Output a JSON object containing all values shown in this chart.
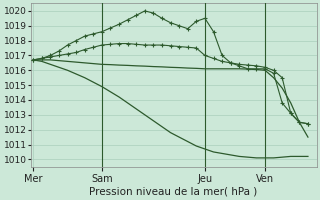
{
  "bg_color": "#cce8d8",
  "grid_color": "#aacfbc",
  "line_color": "#2d5a2d",
  "title": "Pression niveau de la mer( hPa )",
  "ylim": [
    1009.5,
    1020.5
  ],
  "yticks": [
    1010,
    1011,
    1012,
    1013,
    1014,
    1015,
    1016,
    1017,
    1018,
    1019,
    1020
  ],
  "day_labels": [
    "Mer",
    "Sam",
    "Jeu",
    "Ven"
  ],
  "day_positions": [
    0,
    8,
    20,
    27
  ],
  "vline_positions": [
    8,
    20,
    27
  ],
  "xlim": [
    -0.3,
    33
  ],
  "series_flat_x": [
    0,
    1,
    2,
    3,
    4,
    5,
    6,
    7,
    8,
    9,
    10,
    11,
    12,
    13,
    14,
    15,
    16,
    17,
    18,
    19,
    20,
    21,
    22,
    23,
    24,
    25,
    26,
    27,
    28,
    29,
    30,
    31,
    32
  ],
  "series_flat_y": [
    1016.7,
    1016.7,
    1016.7,
    1016.65,
    1016.6,
    1016.55,
    1016.5,
    1016.45,
    1016.4,
    1016.38,
    1016.35,
    1016.33,
    1016.3,
    1016.28,
    1016.25,
    1016.23,
    1016.2,
    1016.18,
    1016.15,
    1016.13,
    1016.1,
    1016.1,
    1016.1,
    1016.1,
    1016.1,
    1016.08,
    1016.05,
    1016.0,
    1015.5,
    1014.8,
    1013.8,
    1012.5,
    1011.5
  ],
  "series_mid_x": [
    0,
    1,
    2,
    3,
    4,
    5,
    6,
    7,
    8,
    9,
    10,
    11,
    12,
    13,
    14,
    15,
    16,
    17,
    18,
    19,
    20,
    21,
    22,
    23,
    24,
    25,
    26,
    27,
    28,
    29,
    30,
    31,
    32
  ],
  "series_mid_y": [
    1016.7,
    1016.8,
    1016.9,
    1017.0,
    1017.1,
    1017.2,
    1017.4,
    1017.55,
    1017.7,
    1017.75,
    1017.8,
    1017.8,
    1017.75,
    1017.7,
    1017.7,
    1017.7,
    1017.65,
    1017.6,
    1017.55,
    1017.5,
    1017.0,
    1016.8,
    1016.6,
    1016.5,
    1016.4,
    1016.35,
    1016.3,
    1016.2,
    1016.0,
    1015.5,
    1013.1,
    1012.5,
    1012.4
  ],
  "series_peak_x": [
    0,
    1,
    2,
    3,
    4,
    5,
    6,
    7,
    8,
    9,
    10,
    11,
    12,
    13,
    14,
    15,
    16,
    17,
    18,
    19,
    20,
    21,
    22,
    23,
    24,
    25,
    26,
    27,
    28,
    29,
    30,
    31,
    32
  ],
  "series_peak_y": [
    1016.7,
    1016.8,
    1017.0,
    1017.3,
    1017.7,
    1018.0,
    1018.3,
    1018.45,
    1018.6,
    1018.85,
    1019.1,
    1019.4,
    1019.7,
    1020.0,
    1019.85,
    1019.5,
    1019.2,
    1019.0,
    1018.8,
    1019.3,
    1019.5,
    1018.6,
    1017.0,
    1016.5,
    1016.3,
    1016.1,
    1016.1,
    1016.1,
    1015.8,
    1013.8,
    1013.1,
    1012.5,
    1012.4
  ],
  "series_drop_x": [
    0,
    1,
    2,
    3,
    4,
    5,
    6,
    7,
    8,
    9,
    10,
    11,
    12,
    13,
    14,
    15,
    16,
    17,
    18,
    19,
    20,
    21,
    22,
    23,
    24,
    25,
    26,
    27,
    28,
    29,
    30,
    31,
    32
  ],
  "series_drop_y": [
    1016.7,
    1016.6,
    1016.4,
    1016.2,
    1016.0,
    1015.75,
    1015.5,
    1015.2,
    1014.9,
    1014.55,
    1014.2,
    1013.8,
    1013.4,
    1013.0,
    1012.6,
    1012.2,
    1011.8,
    1011.5,
    1011.2,
    1010.9,
    1010.7,
    1010.5,
    1010.4,
    1010.3,
    1010.2,
    1010.15,
    1010.1,
    1010.1,
    1010.1,
    1010.15,
    1010.2,
    1010.2,
    1010.2
  ]
}
